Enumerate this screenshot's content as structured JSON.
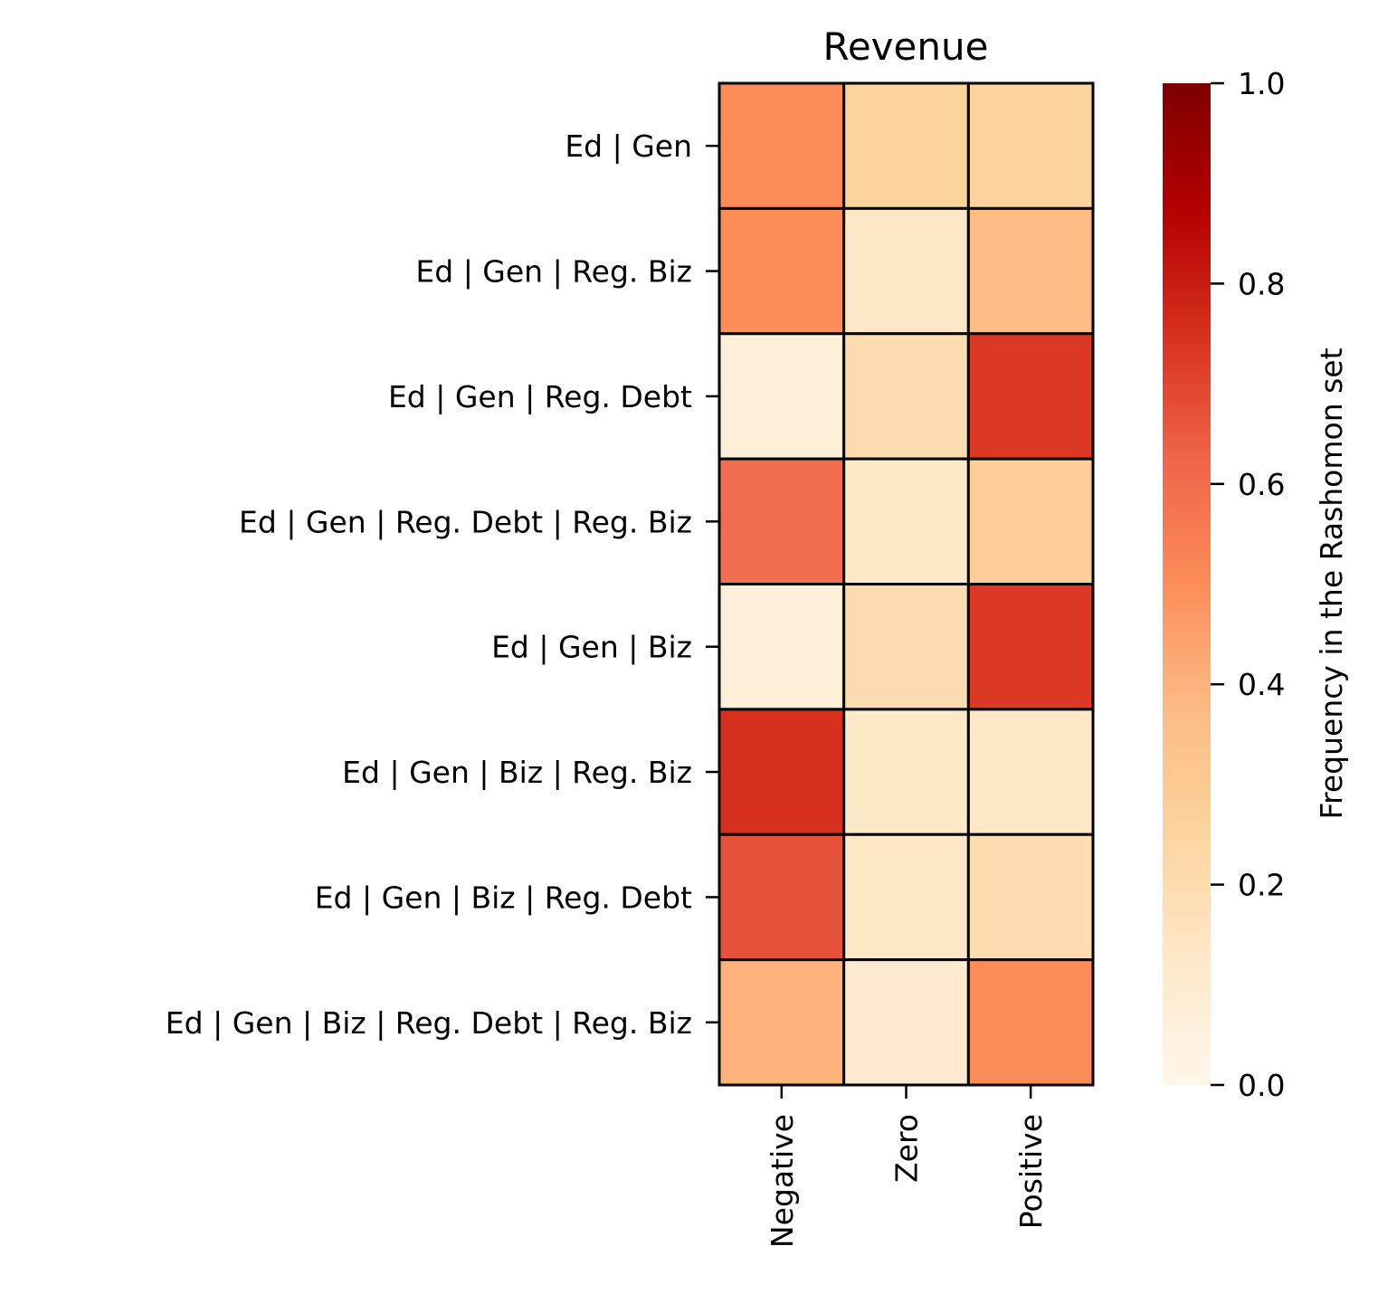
{
  "chart_data": {
    "type": "heatmap",
    "title": "Revenue",
    "xlabel": "",
    "ylabel": "",
    "x_categories": [
      "Negative",
      "Zero",
      "Positive"
    ],
    "y_categories": [
      "Ed | Gen",
      "Ed | Gen | Reg. Biz",
      "Ed | Gen | Reg. Debt",
      "Ed | Gen | Reg. Debt | Reg. Biz",
      "Ed | Gen | Biz",
      "Ed | Gen | Biz | Reg. Biz",
      "Ed | Gen | Biz | Reg. Debt",
      "Ed | Gen | Biz | Reg. Debt | Reg. Biz"
    ],
    "values": [
      [
        0.5,
        0.25,
        0.25
      ],
      [
        0.5,
        0.13,
        0.37
      ],
      [
        0.07,
        0.2,
        0.73
      ],
      [
        0.6,
        0.12,
        0.28
      ],
      [
        0.07,
        0.2,
        0.73
      ],
      [
        0.75,
        0.12,
        0.13
      ],
      [
        0.67,
        0.13,
        0.2
      ],
      [
        0.4,
        0.1,
        0.5
      ]
    ],
    "colorbar": {
      "label": "Frequency in the Rashomon set",
      "range": [
        0.0,
        1.0
      ],
      "ticks": [
        0.0,
        0.2,
        0.4,
        0.6,
        0.8,
        1.0
      ],
      "tick_labels": [
        "0.0",
        "0.2",
        "0.4",
        "0.6",
        "0.8",
        "1.0"
      ],
      "colormap": "OrRd"
    },
    "cell_border_color": "#000000"
  }
}
